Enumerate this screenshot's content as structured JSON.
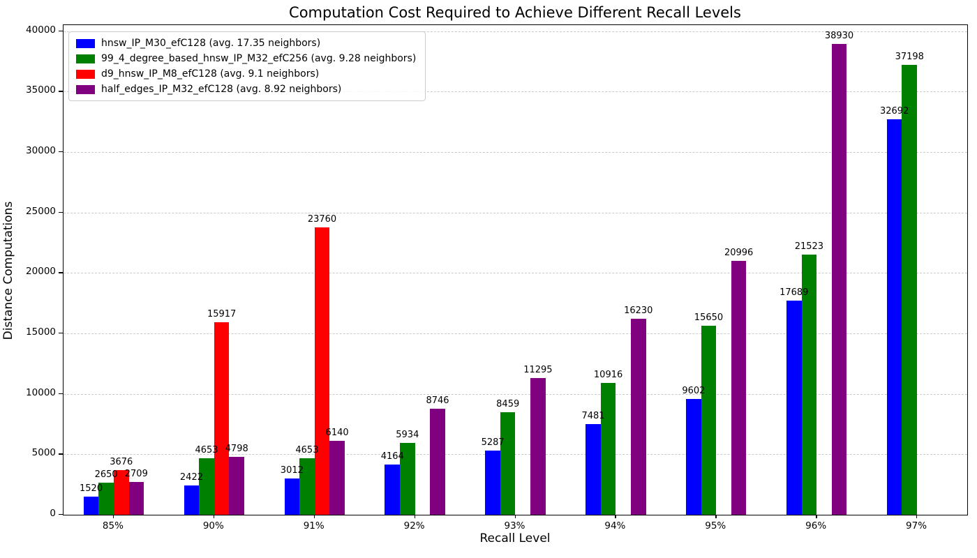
{
  "chart_data": {
    "type": "bar",
    "title": "Computation Cost Required to Achieve Different Recall Levels",
    "xlabel": "Recall Level",
    "ylabel": "Distance Computations",
    "categories": [
      "85%",
      "90%",
      "91%",
      "92%",
      "93%",
      "94%",
      "95%",
      "96%",
      "97%"
    ],
    "series": [
      {
        "name": "hnsw_IP_M30_efC128 (avg. 17.35 neighbors)",
        "color": "#0000ff",
        "values": [
          1520,
          2422,
          3012,
          4164,
          5287,
          7481,
          9602,
          17689,
          32692
        ]
      },
      {
        "name": "99_4_degree_based_hnsw_IP_M32_efC256 (avg. 9.28 neighbors)",
        "color": "#008000",
        "values": [
          2650,
          4653,
          4653,
          5934,
          8459,
          10916,
          15650,
          21523,
          37198
        ]
      },
      {
        "name": "d9_hnsw_IP_M8_efC128 (avg. 9.1 neighbors)",
        "color": "#ff0000",
        "values": [
          3676,
          15917,
          23760,
          null,
          null,
          null,
          null,
          null,
          null
        ]
      },
      {
        "name": "half_edges_IP_M32_efC128 (avg. 8.92 neighbors)",
        "color": "#800080",
        "values": [
          2709,
          4798,
          6140,
          8746,
          11295,
          16230,
          20996,
          38930,
          null
        ]
      }
    ],
    "ylim": [
      0,
      40500
    ],
    "yticks": [
      0,
      5000,
      10000,
      15000,
      20000,
      25000,
      30000,
      35000,
      40000
    ],
    "grid": "horizontal-dashed",
    "legend_position": "upper-left",
    "bar_value_labels": true
  }
}
